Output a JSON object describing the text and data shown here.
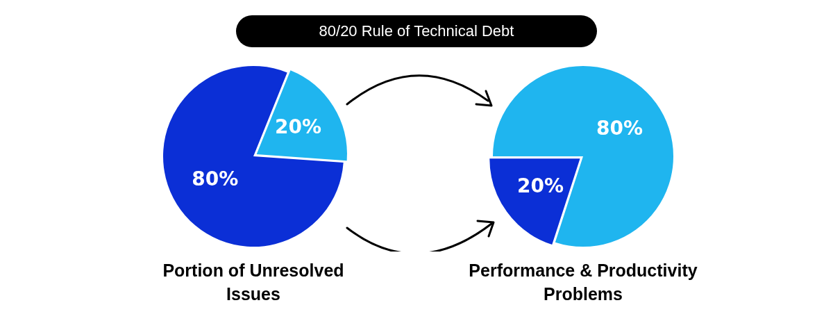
{
  "chart_data": [
    {
      "type": "other",
      "title": "80/20 Rule of Technical Debt"
    },
    {
      "type": "pie",
      "title": "Portion of Unresolved Issues",
      "categories": [
        null,
        null
      ],
      "values": [
        20,
        80
      ],
      "colors": [
        "#1fb5ef",
        "#0b2fd6"
      ],
      "value_labels": [
        "20%",
        "80%"
      ],
      "legend": false
    },
    {
      "type": "pie",
      "title": "Performance & Productivity Problems",
      "categories": [
        null,
        null
      ],
      "values": [
        20,
        80
      ],
      "colors": [
        "#0b2fd6",
        "#1fb5ef"
      ],
      "value_labels": [
        "20%",
        "80%"
      ],
      "legend": false
    }
  ]
}
